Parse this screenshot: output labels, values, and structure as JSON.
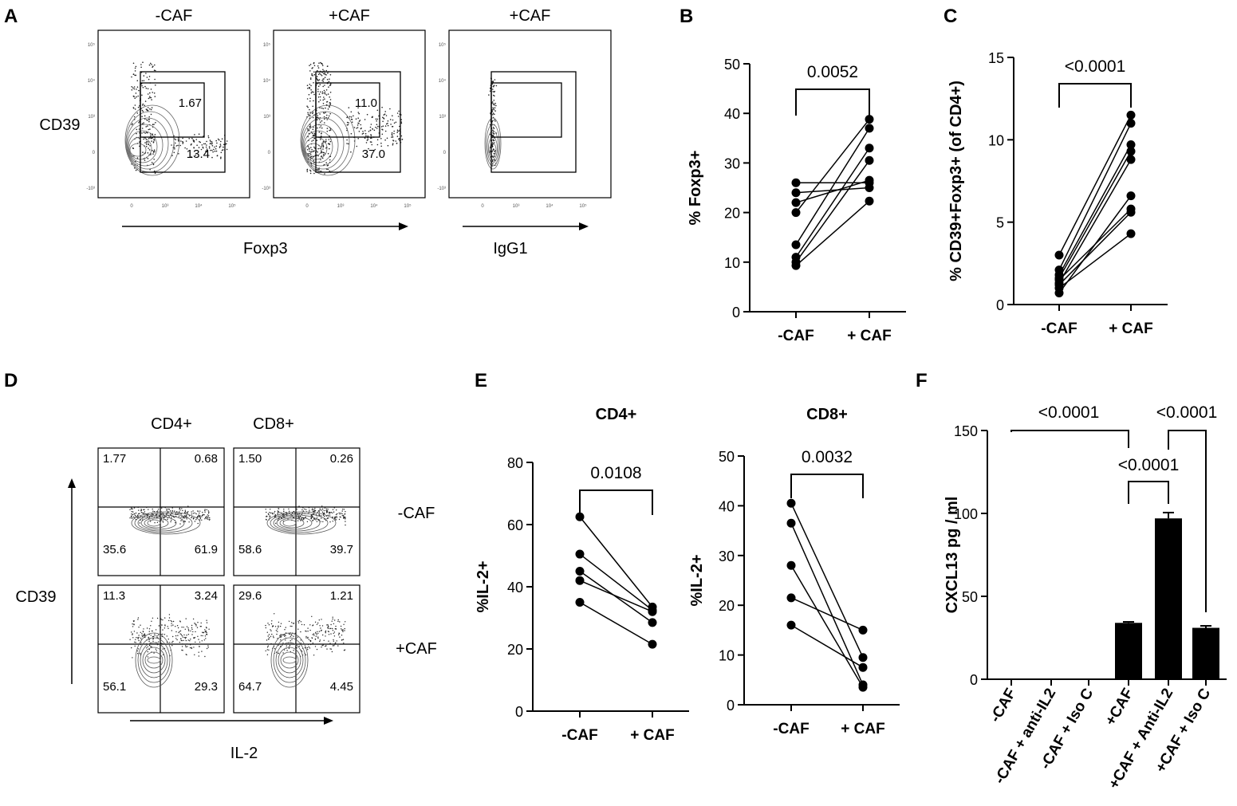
{
  "panels": {
    "A": {
      "label": "A",
      "plots": [
        {
          "title": "-CAF",
          "gates": [
            "1.67",
            "13.4"
          ],
          "density": "low"
        },
        {
          "title": "+CAF",
          "gates": [
            "11.0",
            "37.0"
          ],
          "density": "high"
        },
        {
          "title": "+CAF",
          "gates": [],
          "density": "iso"
        }
      ],
      "ylabel": "CD39",
      "xlabel_1": "Foxp3",
      "xlabel_2": "IgG1",
      "ticks_x": [
        "0",
        "10³",
        "10⁴",
        "10⁵"
      ],
      "ticks_y": [
        "10⁵",
        "10⁴",
        "10³",
        "0",
        "-10³"
      ]
    },
    "D": {
      "label": "D",
      "col_titles": [
        "CD4+",
        "CD8+"
      ],
      "row_titles": [
        "-CAF",
        "+CAF"
      ],
      "ylabel": "CD39",
      "xlabel": "IL-2",
      "quadrants": [
        [
          [
            "1.77",
            "0.68",
            "35.6",
            "61.9"
          ],
          [
            "1.50",
            "0.26",
            "58.6",
            "39.7"
          ]
        ],
        [
          [
            "11.3",
            "3.24",
            "56.1",
            "29.3"
          ],
          [
            "29.6",
            "1.21",
            "64.7",
            "4.45"
          ]
        ]
      ]
    }
  },
  "chart_data": [
    {
      "id": "B",
      "label": "B",
      "type": "scatter",
      "paired": true,
      "ylabel": "% Foxp3+",
      "categories": [
        "-CAF",
        "+ CAF"
      ],
      "ylim": [
        0,
        50
      ],
      "yticks": [
        0,
        10,
        20,
        30,
        40,
        50
      ],
      "pairs": [
        [
          26.0,
          26.0
        ],
        [
          24.0,
          25.0
        ],
        [
          22.0,
          26.5
        ],
        [
          20.0,
          38.8
        ],
        [
          13.5,
          37.0
        ],
        [
          11.0,
          33.0
        ],
        [
          10.0,
          30.5
        ],
        [
          9.3,
          22.3
        ]
      ],
      "pvalue": "0.0052"
    },
    {
      "id": "C",
      "label": "C",
      "type": "scatter",
      "paired": true,
      "ylabel": "% CD39+Foxp3+ (of CD4+)",
      "categories": [
        "-CAF",
        "+ CAF"
      ],
      "ylim": [
        0,
        15
      ],
      "yticks": [
        0,
        5,
        10,
        15
      ],
      "pairs": [
        [
          3.0,
          11.5
        ],
        [
          2.1,
          11.0
        ],
        [
          1.8,
          9.7
        ],
        [
          1.6,
          9.3
        ],
        [
          1.3,
          8.8
        ],
        [
          0.7,
          6.6
        ],
        [
          1.5,
          5.8
        ],
        [
          1.2,
          5.6
        ],
        [
          1.0,
          4.3
        ]
      ],
      "pvalue": "<0.0001"
    },
    {
      "id": "E1",
      "label": "E",
      "type": "scatter",
      "paired": true,
      "title": "CD4+",
      "ylabel": "%IL-2+",
      "categories": [
        "-CAF",
        "+ CAF"
      ],
      "ylim": [
        0,
        80
      ],
      "yticks": [
        0,
        20,
        40,
        60,
        80
      ],
      "pairs": [
        [
          62.5,
          33.5
        ],
        [
          50.5,
          32.5
        ],
        [
          45.0,
          28.5
        ],
        [
          42.0,
          32.0
        ],
        [
          35.0,
          21.5
        ]
      ],
      "pvalue": "0.0108"
    },
    {
      "id": "E2",
      "label": "",
      "type": "scatter",
      "paired": true,
      "title": "CD8+",
      "ylabel": "%IL-2+",
      "categories": [
        "-CAF",
        "+ CAF"
      ],
      "ylim": [
        0,
        50
      ],
      "yticks": [
        0,
        10,
        20,
        30,
        40,
        50
      ],
      "pairs": [
        [
          40.5,
          9.5
        ],
        [
          36.5,
          4.0
        ],
        [
          28.0,
          3.5
        ],
        [
          21.5,
          15.0
        ],
        [
          16.0,
          7.5
        ]
      ],
      "pvalue": "0.0032"
    },
    {
      "id": "F",
      "label": "F",
      "type": "bar",
      "ylabel": "CXCL13 pg / ml",
      "categories": [
        "-CAF",
        "-CAF + anti-IL2",
        "-CAF + Iso C",
        "+CAF",
        "+CAF + Anti-IL2",
        "+CAF + Iso C"
      ],
      "values": [
        0,
        0,
        0,
        34,
        97,
        31
      ],
      "errors": [
        0,
        0,
        0,
        0.6,
        3.5,
        1.2
      ],
      "ylim": [
        0,
        150
      ],
      "yticks": [
        0,
        50,
        100,
        150
      ],
      "comparisons": [
        {
          "from": 0,
          "to": 3,
          "label": "<0.0001"
        },
        {
          "from": 3,
          "to": 4,
          "label": "<0.0001"
        },
        {
          "from": 4,
          "to": 5,
          "label": "<0.0001"
        }
      ]
    }
  ]
}
